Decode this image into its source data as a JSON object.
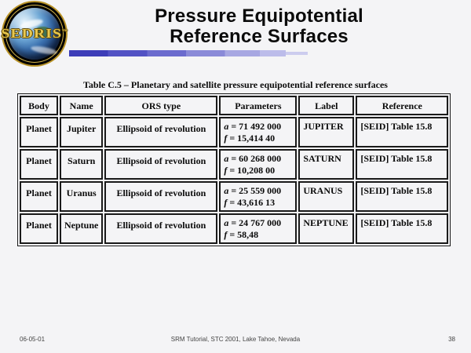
{
  "logo": {
    "text": "SEDRIS",
    "tm": "™"
  },
  "title": {
    "line1": "Pressure Equipotential",
    "line2": "Reference Surfaces"
  },
  "colors": {
    "accent_dark": "#3d3db8",
    "accent_light": "#ccccee",
    "gold": "#e8c84f",
    "background": "#f4f4f6"
  },
  "table": {
    "caption": "Table C.5 – Planetary and satellite pressure equipotential reference surfaces",
    "headers": [
      "Body",
      "Name",
      "ORS type",
      "Parameters",
      "Label",
      "Reference"
    ],
    "rows": [
      {
        "body": "Planet",
        "name": "Jupiter",
        "ors_type": "Ellipsoid of revolution",
        "params": [
          {
            "sym": "a",
            "value": "71 492 000"
          },
          {
            "sym": "f",
            "value": "15,414 40"
          }
        ],
        "label": "JUPITER",
        "reference": "[SEID] Table 15.8"
      },
      {
        "body": "Planet",
        "name": "Saturn",
        "ors_type": "Ellipsoid of revolution",
        "params": [
          {
            "sym": "a",
            "value": "60 268 000"
          },
          {
            "sym": "f",
            "value": "10,208 00"
          }
        ],
        "label": "SATURN",
        "reference": "[SEID] Table 15.8"
      },
      {
        "body": "Planet",
        "name": "Uranus",
        "ors_type": "Ellipsoid of revolution",
        "params": [
          {
            "sym": "a",
            "value": "25 559 000"
          },
          {
            "sym": "f",
            "value": "43,616 13"
          }
        ],
        "label": "URANUS",
        "reference": "[SEID] Table 15.8"
      },
      {
        "body": "Planet",
        "name": "Neptune",
        "ors_type": "Ellipsoid of revolution",
        "params": [
          {
            "sym": "a",
            "value": "24 767 000"
          },
          {
            "sym": "f",
            "value": "58,48"
          }
        ],
        "label": "NEPTUNE",
        "reference": "[SEID] Table 15.8"
      }
    ]
  },
  "footer": {
    "date": "06-05-01",
    "center": "SRM Tutorial, STC 2001, Lake Tahoe, Nevada",
    "page": "38"
  }
}
